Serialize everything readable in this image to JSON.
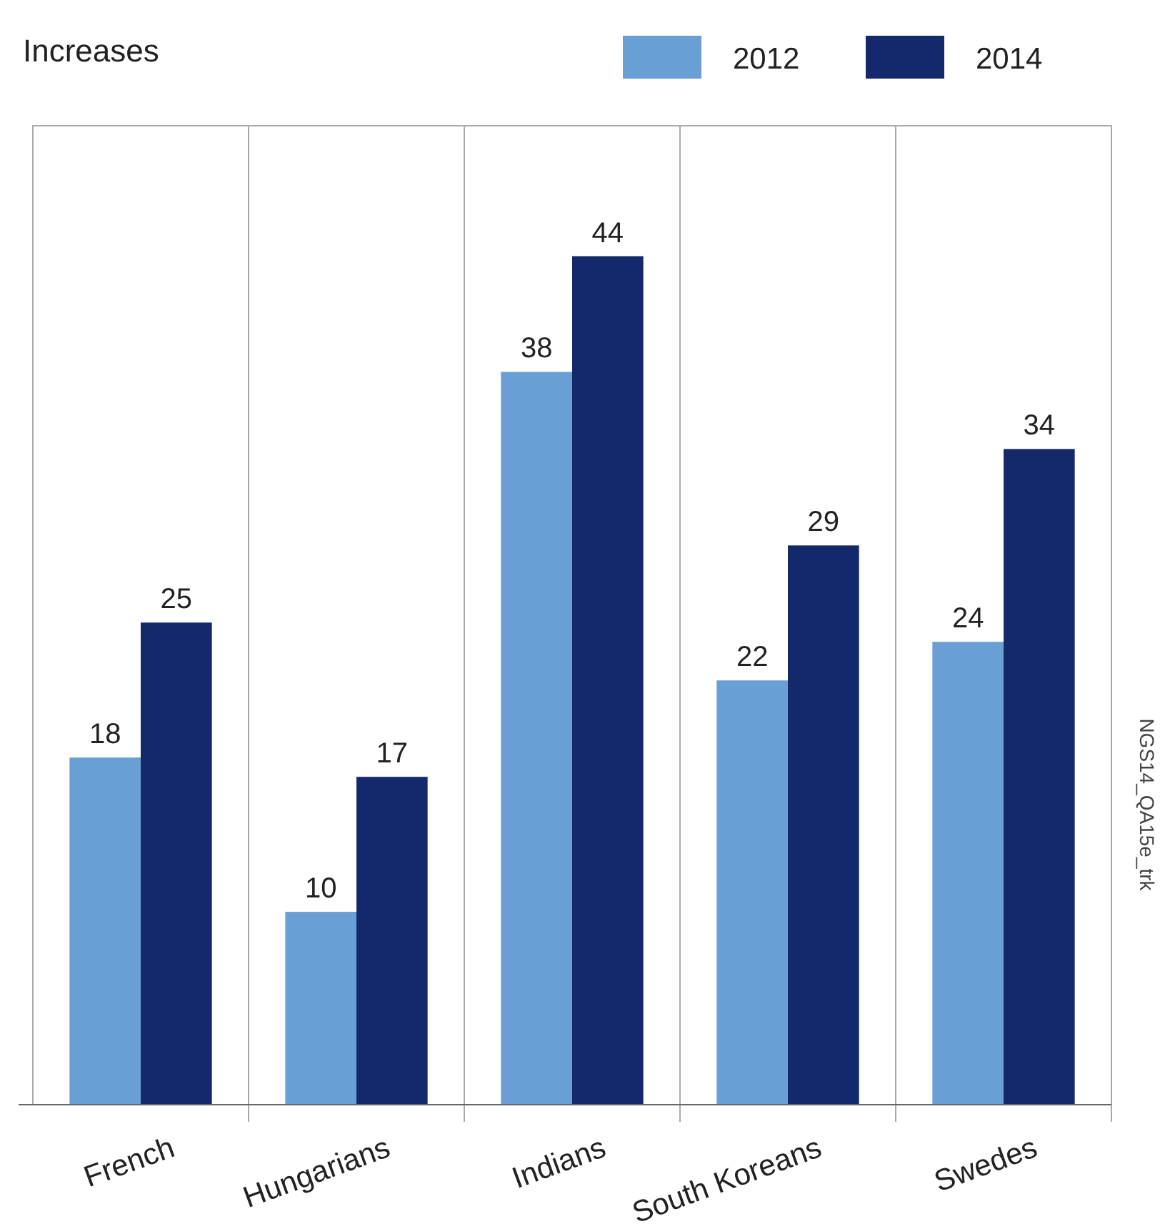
{
  "chart_data": {
    "type": "bar",
    "title": "Increases",
    "categories": [
      "French",
      "Hungarians",
      "Indians",
      "South Koreans",
      "Swedes"
    ],
    "series": [
      {
        "name": "2012",
        "color": "#6a9fd6",
        "values": [
          18,
          10,
          38,
          22,
          24
        ]
      },
      {
        "name": "2014",
        "color": "#14296b",
        "values": [
          25,
          17,
          44,
          29,
          34
        ]
      }
    ],
    "data_labels": true,
    "legend": "top right",
    "annotations": [
      "NGS14_QA15e_trk"
    ]
  }
}
